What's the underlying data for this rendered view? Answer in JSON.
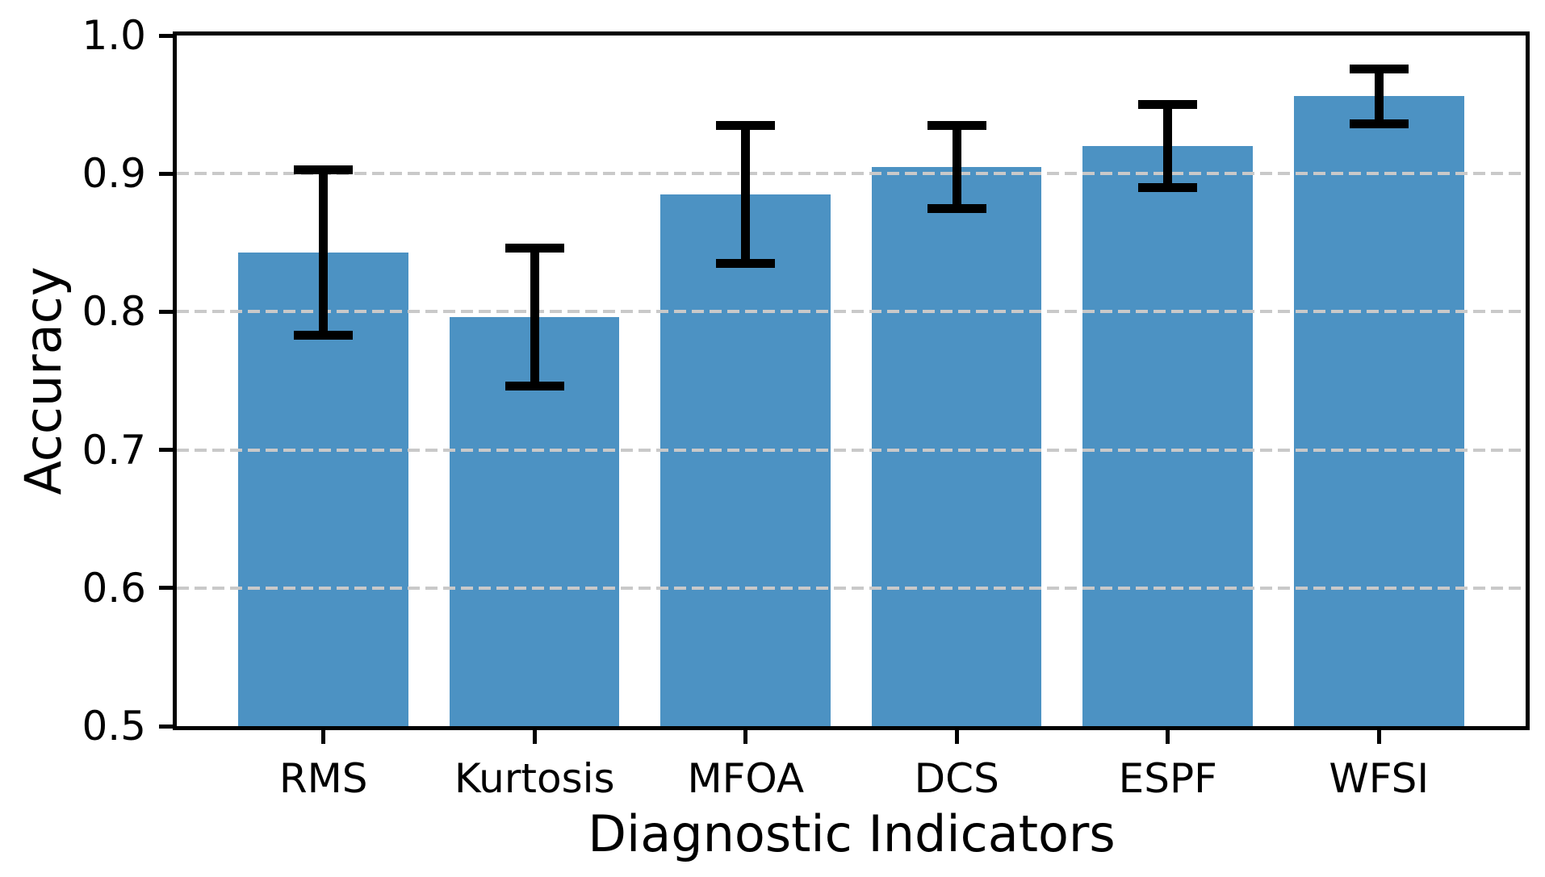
{
  "figure": {
    "background": "#ffffff"
  },
  "chart_data": {
    "type": "bar",
    "title": "",
    "xlabel": "Diagnostic Indicators",
    "ylabel": "Accuracy",
    "categories": [
      "RMS",
      "Kurtosis",
      "MFOA",
      "DCS",
      "ESPF",
      "WFSI"
    ],
    "values": [
      0.843,
      0.796,
      0.885,
      0.905,
      0.92,
      0.956
    ],
    "error_bars": [
      0.06,
      0.05,
      0.05,
      0.03,
      0.03,
      0.02
    ],
    "ylim": [
      0.5,
      1.0
    ],
    "ytick_labels": [
      "1.0",
      "0.9",
      "0.8",
      "0.7",
      "0.6",
      "0.5"
    ],
    "ytick_values": [
      1.0,
      0.9,
      0.8,
      0.7,
      0.6,
      0.5
    ],
    "gridline_values": [
      0.9,
      0.8,
      0.7,
      0.6
    ],
    "grid_style": "horizontal dashed, drawn above bars",
    "legend_position": "none",
    "bar_color": "#4C92C3",
    "errorbar_color": "#000000",
    "grid_color": "#C9C9C9",
    "axis_color": "#000000"
  }
}
